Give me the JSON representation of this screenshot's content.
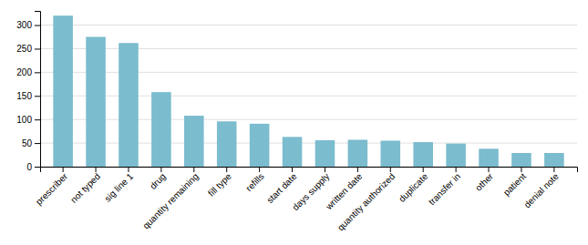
{
  "chart_data": {
    "type": "bar",
    "categories": [
      "prescriber",
      "not typed",
      "sig line 1",
      "drug",
      "quantity remaining",
      "fill type",
      "refills",
      "start date",
      "days supply",
      "written date",
      "quantity authorized",
      "duplicate",
      "transfer in",
      "other",
      "patient",
      "denial note"
    ],
    "values": [
      320,
      275,
      262,
      158,
      108,
      96,
      91,
      63,
      56,
      57,
      55,
      52,
      49,
      38,
      29,
      29
    ],
    "color": "#7bbcce",
    "ylim": [
      0,
      330
    ],
    "yticks": [
      0,
      50,
      100,
      150,
      200,
      250,
      300
    ],
    "grid": true
  }
}
